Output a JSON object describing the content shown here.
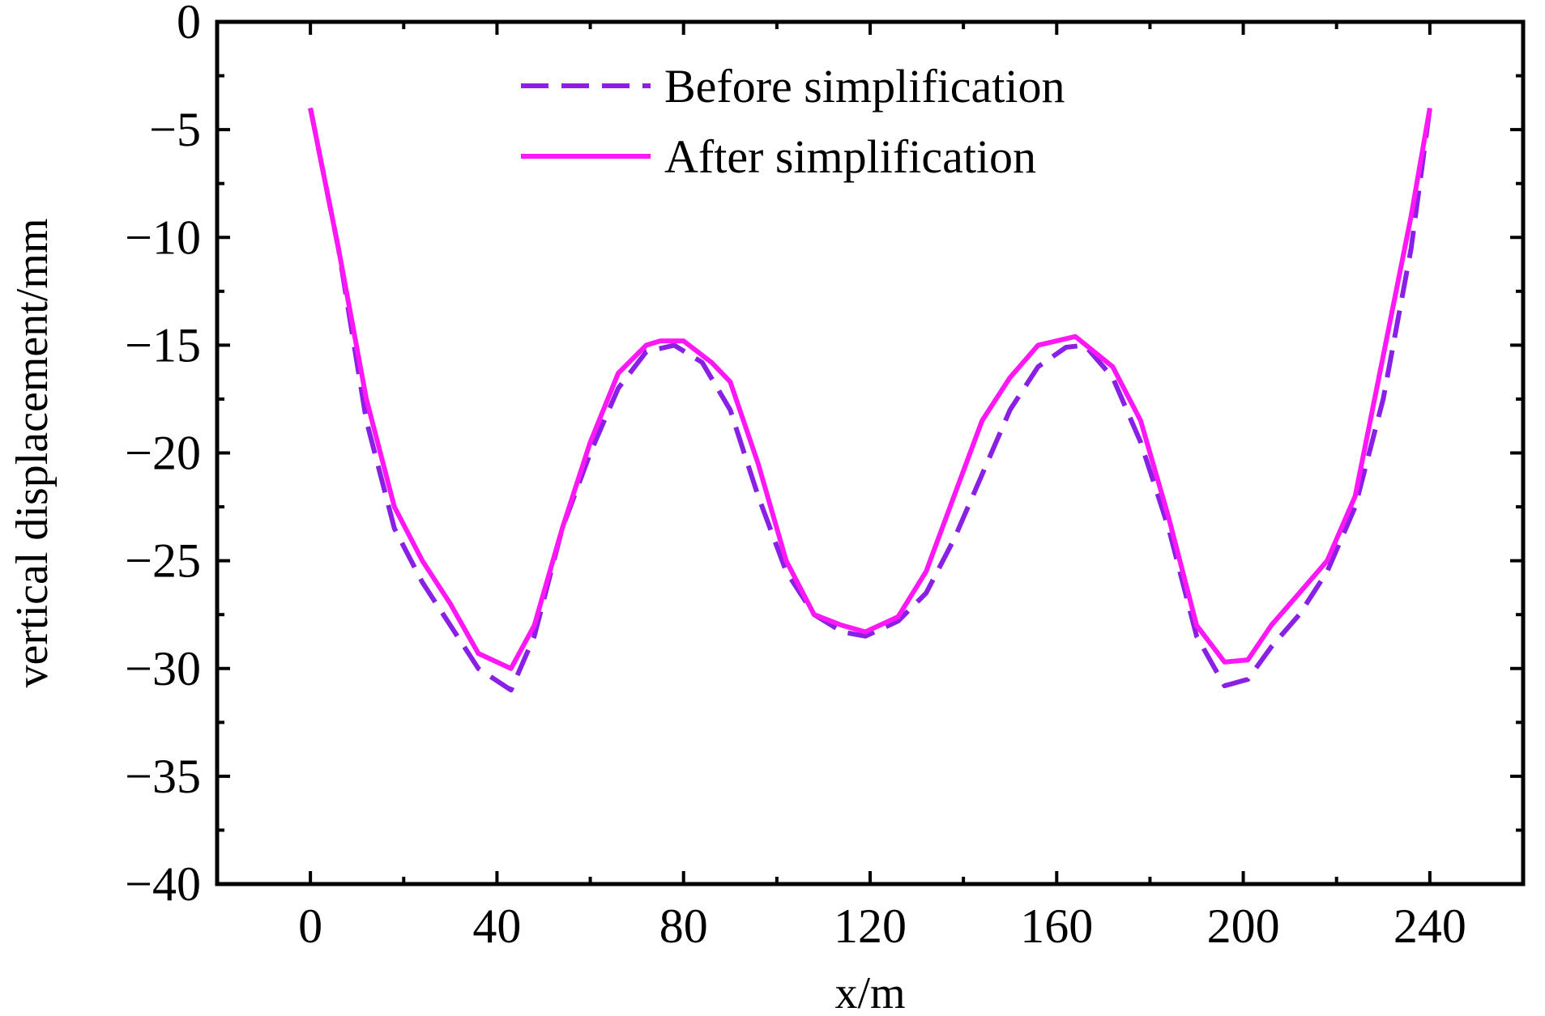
{
  "chart_data": {
    "type": "line",
    "title": "",
    "xlabel": "x/m",
    "ylabel": "vertical displacement/mm",
    "xlim": [
      -20,
      260
    ],
    "ylim": [
      -40,
      0
    ],
    "x_ticks": [
      0,
      40,
      80,
      120,
      160,
      200,
      240
    ],
    "y_ticks": [
      0,
      -5,
      -10,
      -15,
      -20,
      -25,
      -30,
      -35,
      -40
    ],
    "x_tick_labels": [
      "0",
      "40",
      "80",
      "120",
      "160",
      "200",
      "240"
    ],
    "y_tick_labels": [
      "0",
      "−5",
      "−10",
      "−15",
      "−20",
      "−25",
      "−30",
      "−35",
      "−40"
    ],
    "grid": false,
    "legend_position": "top-center",
    "series": [
      {
        "name": "Before simplification",
        "color": "#8a1fe6",
        "style": "dashed",
        "x": [
          0,
          6,
          12,
          18,
          24,
          30,
          36,
          43,
          48,
          54,
          60,
          66,
          72,
          78,
          84,
          90,
          96,
          102,
          108,
          114,
          119,
          126,
          132,
          138,
          144,
          150,
          156,
          162,
          166,
          172,
          178,
          184,
          190,
          196,
          201,
          206,
          212,
          218,
          224,
          230,
          236,
          240
        ],
        "y": [
          -4.0,
          -10.5,
          -18.5,
          -23.5,
          -26.0,
          -28.0,
          -30.0,
          -31.0,
          -28.5,
          -23.5,
          -20.0,
          -17.0,
          -15.3,
          -15.0,
          -15.8,
          -18.0,
          -22.0,
          -25.5,
          -27.5,
          -28.3,
          -28.5,
          -27.8,
          -26.5,
          -24.0,
          -21.0,
          -18.0,
          -16.0,
          -15.1,
          -15.0,
          -16.5,
          -19.5,
          -23.5,
          -28.5,
          -30.8,
          -30.5,
          -29.0,
          -27.5,
          -25.5,
          -22.5,
          -17.5,
          -10.5,
          -4.0
        ]
      },
      {
        "name": "After simplification",
        "color": "#ff17f5",
        "style": "solid",
        "x": [
          0,
          6,
          12,
          18,
          24,
          30,
          36,
          43,
          48,
          54,
          60,
          66,
          72,
          75,
          80,
          86,
          90,
          96,
          102,
          108,
          114,
          119,
          126,
          132,
          138,
          144,
          150,
          156,
          160,
          164,
          172,
          178,
          184,
          190,
          196,
          201,
          206,
          212,
          218,
          224,
          230,
          236,
          240
        ],
        "y": [
          -4.0,
          -10.5,
          -17.5,
          -22.5,
          -25.0,
          -27.0,
          -29.3,
          -30.0,
          -28.0,
          -23.5,
          -19.5,
          -16.3,
          -15.0,
          -14.8,
          -14.8,
          -15.8,
          -16.7,
          -20.5,
          -25.0,
          -27.5,
          -28.0,
          -28.3,
          -27.6,
          -25.5,
          -22.0,
          -18.5,
          -16.5,
          -15.0,
          -14.8,
          -14.6,
          -16.0,
          -18.5,
          -23.0,
          -28.0,
          -29.7,
          -29.6,
          -28.0,
          -26.5,
          -25.0,
          -22.0,
          -15.5,
          -9.0,
          -4.0
        ]
      }
    ]
  }
}
